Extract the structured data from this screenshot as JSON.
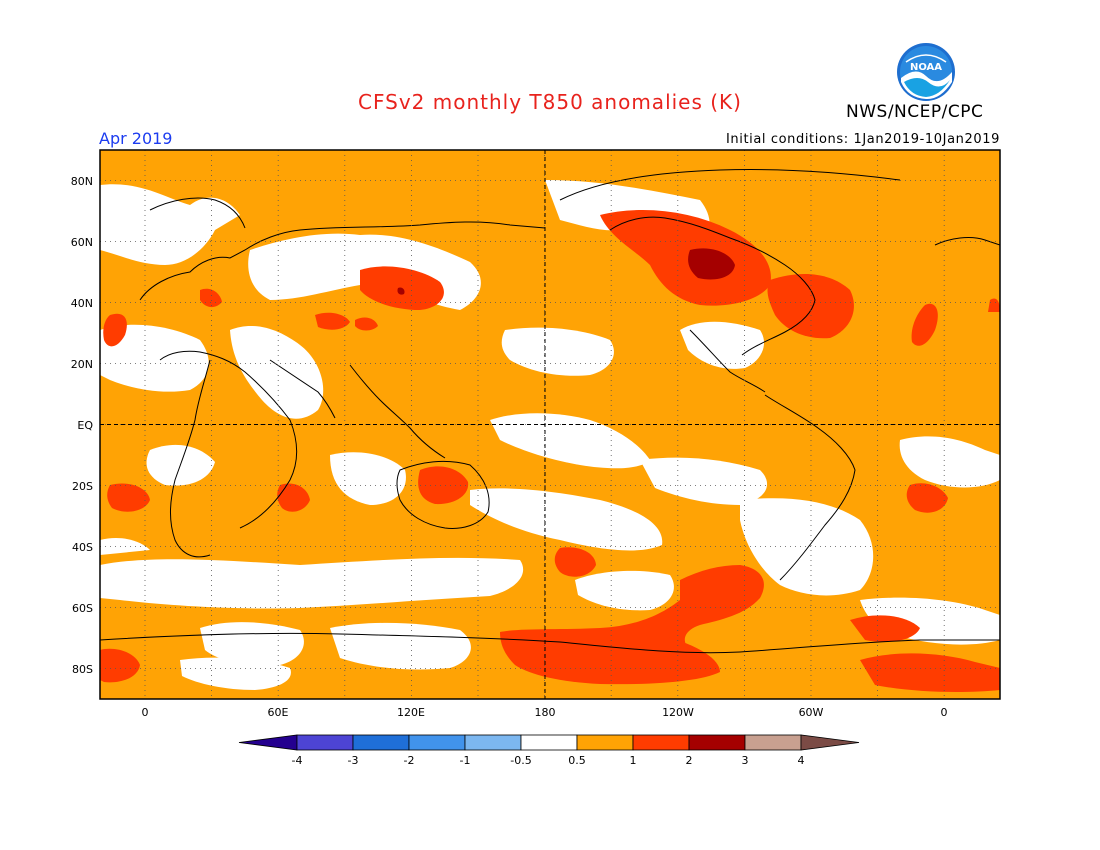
{
  "header": {
    "title": "CFSv2 monthly T850 anomalies (K)",
    "agency": "NWS/NCEP/CPC",
    "month": "Apr 2019",
    "initial_conditions": "Initial conditions: 1Jan2019-10Jan2019",
    "logo_text": "NOAA"
  },
  "map": {
    "projection": "cylindrical equidistant",
    "lon_range": [
      -20,
      380
    ],
    "lat_range": [
      -90,
      90
    ],
    "y_axis_labels": [
      "80N",
      "60N",
      "40N",
      "20N",
      "EQ",
      "20S",
      "40S",
      "60S",
      "80S"
    ],
    "x_axis_labels": [
      "0",
      "60E",
      "120E",
      "180",
      "120W",
      "60W",
      "0"
    ],
    "dashed_reference_lines": [
      "EQ",
      "180"
    ],
    "grid": "dotted"
  },
  "colorbar": {
    "levels": [
      "-4",
      "-3",
      "-2",
      "-1",
      "-0.5",
      "0.5",
      "1",
      "2",
      "3",
      "4"
    ],
    "colors": [
      "#24008f",
      "#4d44d4",
      "#1f6fd8",
      "#4193ec",
      "#7cb7f0",
      "#ffffff",
      "#ffa305",
      "#ff3c00",
      "#a50000",
      "#c8a090",
      "#7b4b45"
    ]
  },
  "colors": {
    "anomaly_0_5_to_1": "#ffa305",
    "anomaly_1_to_2": "#ff3c00",
    "anomaly_2_to_3": "#a50000",
    "title": "#e8231d",
    "month_label": "#1c3cf0"
  }
}
